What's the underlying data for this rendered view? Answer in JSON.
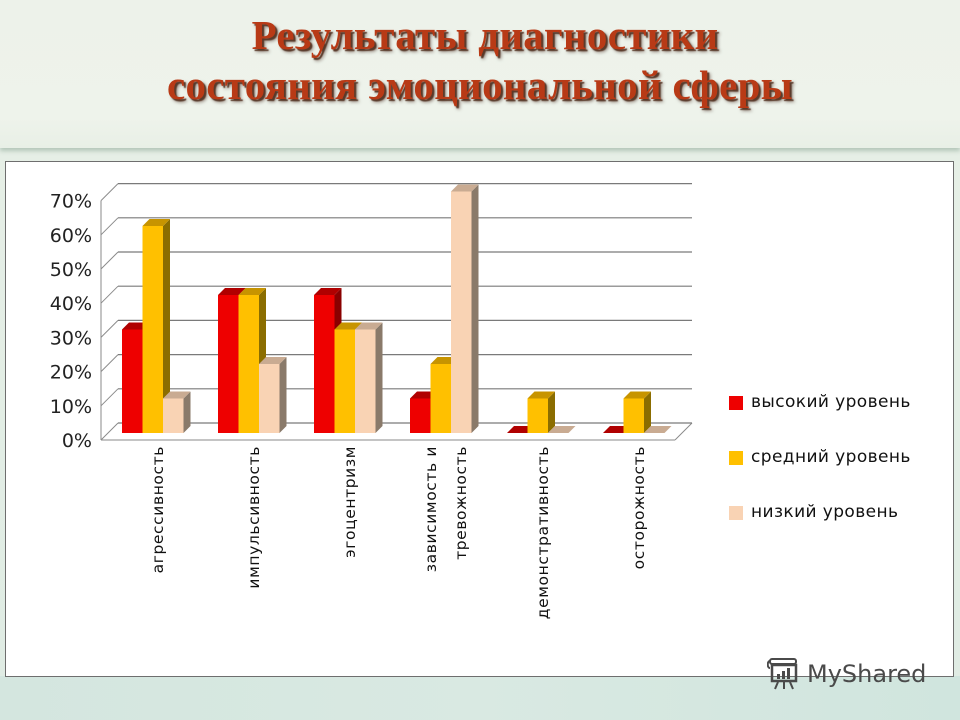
{
  "header": {
    "title_line1": "Результаты  диагностики",
    "title_line2": "состояния эмоциональной сферы"
  },
  "colors": {
    "high": "#ee0000",
    "high_side": "#8a0000",
    "medium": "#ffc000",
    "medium_side": "#8b6d00",
    "low": "#f9d3b4",
    "low_side": "#8a7a6a",
    "title": "#b83a16"
  },
  "legend": {
    "items": [
      {
        "label": "высокий уровень",
        "color": "#ee0000"
      },
      {
        "label": "средний уровень",
        "color": "#ffc000"
      },
      {
        "label": "низкий уровень",
        "color": "#f9d3b4"
      }
    ]
  },
  "watermark": {
    "text": "MyShared"
  },
  "chart_data": {
    "type": "bar",
    "subtype": "3d-clustered-column",
    "title": "Результаты  диагностики состояния эмоциональной сферы",
    "xlabel": "",
    "ylabel": "",
    "ylim": [
      0,
      70
    ],
    "yticks": [
      "0%",
      "10%",
      "20%",
      "30%",
      "40%",
      "50%",
      "60%",
      "70%"
    ],
    "grid": true,
    "legend_position": "right",
    "categories": [
      "агрессивность",
      "импульсивность",
      "эгоцентризм",
      "зависимость и тревожность",
      "демонстративность",
      "осторожность"
    ],
    "category_label_lines": [
      [
        "агрессивность"
      ],
      [
        "импульсивность"
      ],
      [
        "эгоцентризм"
      ],
      [
        "зависимость и",
        "тревожность"
      ],
      [
        "демонстративность"
      ],
      [
        "осторожность"
      ]
    ],
    "series": [
      {
        "name": "высокий уровень",
        "values": [
          30,
          40,
          40,
          10,
          0,
          0
        ]
      },
      {
        "name": "средний уровень",
        "values": [
          60,
          40,
          30,
          20,
          10,
          10
        ]
      },
      {
        "name": "низкий уровень",
        "values": [
          10,
          20,
          30,
          70,
          0,
          0
        ]
      }
    ],
    "unit": "%"
  }
}
